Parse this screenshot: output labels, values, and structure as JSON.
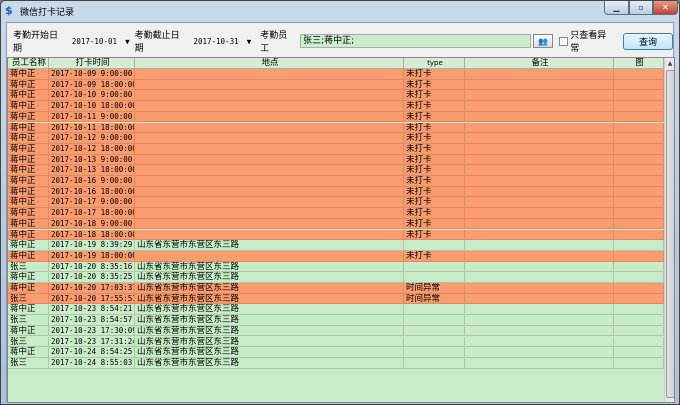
{
  "window": {
    "title": "微信打卡记录",
    "icon": "app-logo-icon"
  },
  "toolbar": {
    "start_label": "考勤开始日期",
    "start_value": "2017-10-01",
    "end_label": "考勤截止日期",
    "end_value": "2017-10-31",
    "employee_label": "考勤员工",
    "employee_value": "张三;蒋中正;",
    "abnormal_only_label": "只查看异常",
    "abnormal_only_checked": false,
    "query_label": "查询"
  },
  "colors": {
    "abnormal": "#fa9b70",
    "normal": "#c8ecc8"
  },
  "table": {
    "columns": [
      "员工名称",
      "打卡时间",
      "地点",
      "type",
      "备注",
      "图"
    ],
    "rows": [
      [
        "蒋中正",
        "2017-10-09 9:00:00",
        "",
        "未打卡",
        "",
        ""
      ],
      [
        "蒋中正",
        "2017-10-09 18:00:00",
        "",
        "未打卡",
        "",
        ""
      ],
      [
        "蒋中正",
        "2017-10-10 9:00:00",
        "",
        "未打卡",
        "",
        ""
      ],
      [
        "蒋中正",
        "2017-10-10 18:00:00",
        "",
        "未打卡",
        "",
        ""
      ],
      [
        "蒋中正",
        "2017-10-11 9:00:00",
        "",
        "未打卡",
        "",
        ""
      ],
      [
        "蒋中正",
        "2017-10-11 18:00:00",
        "",
        "未打卡",
        "",
        ""
      ],
      [
        "蒋中正",
        "2017-10-12 9:00:00",
        "",
        "未打卡",
        "",
        ""
      ],
      [
        "蒋中正",
        "2017-10-12 18:00:00",
        "",
        "未打卡",
        "",
        ""
      ],
      [
        "蒋中正",
        "2017-10-13 9:00:00",
        "",
        "未打卡",
        "",
        ""
      ],
      [
        "蒋中正",
        "2017-10-13 18:00:00",
        "",
        "未打卡",
        "",
        ""
      ],
      [
        "蒋中正",
        "2017-10-16 9:00:00",
        "",
        "未打卡",
        "",
        ""
      ],
      [
        "蒋中正",
        "2017-10-16 18:00:00",
        "",
        "未打卡",
        "",
        ""
      ],
      [
        "蒋中正",
        "2017-10-17 9:00:00",
        "",
        "未打卡",
        "",
        ""
      ],
      [
        "蒋中正",
        "2017-10-17 18:00:00",
        "",
        "未打卡",
        "",
        ""
      ],
      [
        "蒋中正",
        "2017-10-18 9:00:00",
        "",
        "未打卡",
        "",
        ""
      ],
      [
        "蒋中正",
        "2017-10-18 18:00:00",
        "",
        "未打卡",
        "",
        ""
      ],
      [
        "蒋中正",
        "2017-10-19 8:39:29",
        "山东省东营市东营区东三路",
        "",
        "",
        ""
      ],
      [
        "蒋中正",
        "2017-10-19 18:00:00",
        "",
        "未打卡",
        "",
        ""
      ],
      [
        "张三",
        "2017-10-20 8:35:16",
        "山东省东营市东营区东三路",
        "",
        "",
        ""
      ],
      [
        "蒋中正",
        "2017-10-20 8:35:25",
        "山东省东营市东营区东三路",
        "",
        "",
        ""
      ],
      [
        "蒋中正",
        "2017-10-20 17:03:37",
        "山东省东营市东营区东三路",
        "时间异常",
        "",
        ""
      ],
      [
        "张三",
        "2017-10-20 17:55:51",
        "山东省东营市东营区东三路",
        "时间异常",
        "",
        ""
      ],
      [
        "蒋中正",
        "2017-10-23 8:54:21",
        "山东省东营市东营区东三路",
        "",
        "",
        ""
      ],
      [
        "张三",
        "2017-10-23 8:54:57",
        "山东省东营市东营区东三路",
        "",
        "",
        ""
      ],
      [
        "蒋中正",
        "2017-10-23 17:30:09",
        "山东省东营市东营区东三路",
        "",
        "",
        ""
      ],
      [
        "张三",
        "2017-10-23 17:31:24",
        "山东省东营市东营区东三路",
        "",
        "",
        ""
      ],
      [
        "蒋中正",
        "2017-10-24 8:54:25",
        "山东省东营市东营区东三路",
        "",
        "",
        ""
      ],
      [
        "张三",
        "2017-10-24 8:55:03",
        "山东省东营市东营区东三路",
        "",
        "",
        ""
      ]
    ]
  }
}
